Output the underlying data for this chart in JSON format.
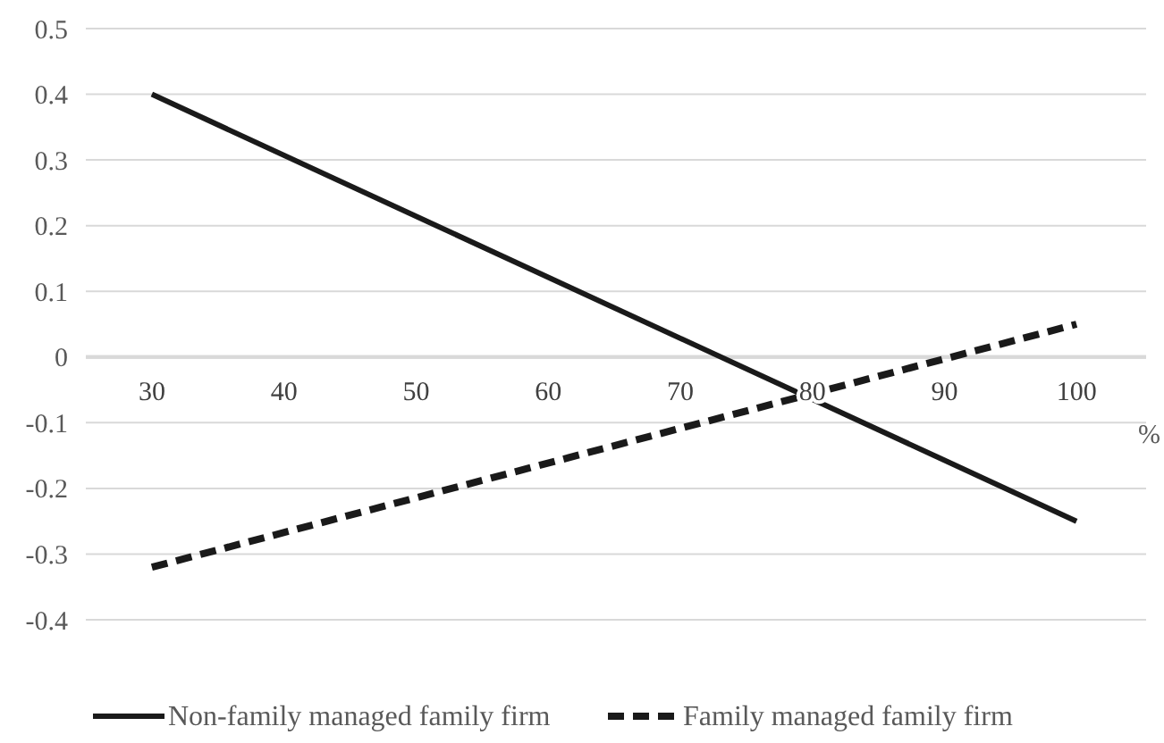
{
  "chart_data": {
    "type": "line",
    "xlabel": "%",
    "x": [
      30,
      100
    ],
    "xlim": [
      25,
      105
    ],
    "xticks": [
      30,
      40,
      50,
      60,
      70,
      80,
      90,
      100
    ],
    "ylim": [
      -0.4,
      0.5
    ],
    "yticks": [
      -0.4,
      -0.3,
      -0.2,
      -0.1,
      0,
      0.1,
      0.2,
      0.3,
      0.4,
      0.5
    ],
    "grid": "y",
    "legend": "bottom",
    "marker": "none",
    "series": [
      {
        "name": "Non-family managed family firm",
        "color": "#1a1a1a",
        "values": [
          0.4,
          -0.25
        ],
        "line_style": "solid"
      },
      {
        "name": "Family managed family firm",
        "color": "#1a1a1a",
        "values": [
          -0.32,
          0.05
        ],
        "line_style": "dashed"
      }
    ]
  }
}
